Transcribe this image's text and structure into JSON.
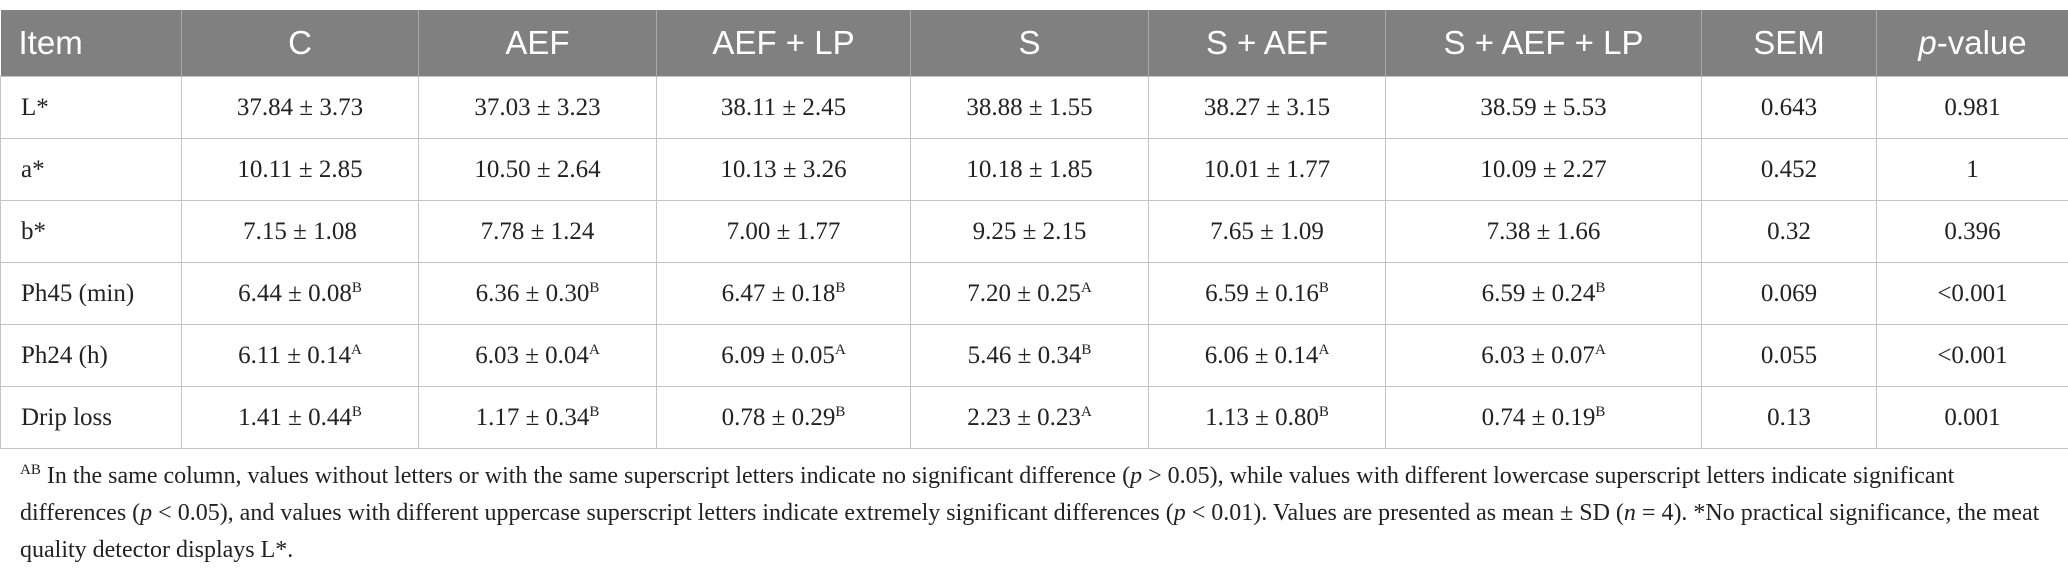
{
  "table": {
    "header": [
      "Item",
      "C",
      "AEF",
      "AEF + LP",
      "S",
      "S + AEF",
      "S + AEF + LP",
      "SEM",
      [
        {
          "text": "p",
          "style": "italic"
        },
        {
          "text": "-value"
        }
      ]
    ],
    "rows": [
      [
        "L*",
        "37.84 ± 3.73",
        "37.03 ± 3.23",
        "38.11 ± 2.45",
        "38.88 ± 1.55",
        "38.27 ± 3.15",
        "38.59 ± 5.53",
        "0.643",
        "0.981"
      ],
      [
        "a*",
        "10.11 ± 2.85",
        "10.50 ± 2.64",
        "10.13 ± 3.26",
        "10.18 ± 1.85",
        "10.01 ± 1.77",
        "10.09 ± 2.27",
        "0.452",
        "1"
      ],
      [
        "b*",
        "7.15 ± 1.08",
        "7.78 ± 1.24",
        "7.00 ± 1.77",
        "9.25 ± 2.15",
        "7.65 ± 1.09",
        "7.38 ± 1.66",
        "0.32",
        "0.396"
      ],
      [
        "Ph45 (min)",
        [
          {
            "text": "6.44 ± 0.08"
          },
          {
            "text": "B",
            "style": "sup"
          }
        ],
        [
          {
            "text": "6.36 ± 0.30"
          },
          {
            "text": "B",
            "style": "sup"
          }
        ],
        [
          {
            "text": "6.47 ± 0.18"
          },
          {
            "text": "B",
            "style": "sup"
          }
        ],
        [
          {
            "text": "7.20 ± 0.25"
          },
          {
            "text": "A",
            "style": "sup"
          }
        ],
        [
          {
            "text": "6.59 ± 0.16"
          },
          {
            "text": "B",
            "style": "sup"
          }
        ],
        [
          {
            "text": "6.59 ± 0.24"
          },
          {
            "text": "B",
            "style": "sup"
          }
        ],
        "0.069",
        "<0.001"
      ],
      [
        "Ph24 (h)",
        [
          {
            "text": "6.11 ± 0.14"
          },
          {
            "text": "A",
            "style": "sup"
          }
        ],
        [
          {
            "text": "6.03 ± 0.04"
          },
          {
            "text": "A",
            "style": "sup"
          }
        ],
        [
          {
            "text": "6.09 ± 0.05"
          },
          {
            "text": "A",
            "style": "sup"
          }
        ],
        [
          {
            "text": "5.46 ± 0.34"
          },
          {
            "text": "B",
            "style": "sup"
          }
        ],
        [
          {
            "text": "6.06 ± 0.14"
          },
          {
            "text": "A",
            "style": "sup"
          }
        ],
        [
          {
            "text": "6.03 ± 0.07"
          },
          {
            "text": "A",
            "style": "sup"
          }
        ],
        "0.055",
        "<0.001"
      ],
      [
        "Drip loss",
        [
          {
            "text": "1.41 ± 0.44"
          },
          {
            "text": "B",
            "style": "sup"
          }
        ],
        [
          {
            "text": "1.17 ± 0.34"
          },
          {
            "text": "B",
            "style": "sup"
          }
        ],
        [
          {
            "text": "0.78 ± 0.29"
          },
          {
            "text": "B",
            "style": "sup"
          }
        ],
        [
          {
            "text": "2.23 ± 0.23"
          },
          {
            "text": "A",
            "style": "sup"
          }
        ],
        [
          {
            "text": "1.13 ± 0.80"
          },
          {
            "text": "B",
            "style": "sup"
          }
        ],
        [
          {
            "text": "0.74 ± 0.19"
          },
          {
            "text": "B",
            "style": "sup"
          }
        ],
        "0.13",
        "0.001"
      ]
    ]
  },
  "footnote": [
    {
      "text": "AB",
      "style": "sup"
    },
    {
      "text": " In the same column, values without letters or with the same superscript letters indicate no significant difference ("
    },
    {
      "text": "p",
      "style": "italic"
    },
    {
      "text": " > 0.05), while values with different lowercase superscript letters indicate significant differences ("
    },
    {
      "text": "p",
      "style": "italic"
    },
    {
      "text": " < 0.05), and values with different uppercase superscript letters indicate extremely significant differences ("
    },
    {
      "text": "p",
      "style": "italic"
    },
    {
      "text": " < 0.01). Values are presented as mean ± SD ("
    },
    {
      "text": "n",
      "style": "italic"
    },
    {
      "text": " = 4). *No practical significance, the meat quality detector displays L*."
    }
  ]
}
